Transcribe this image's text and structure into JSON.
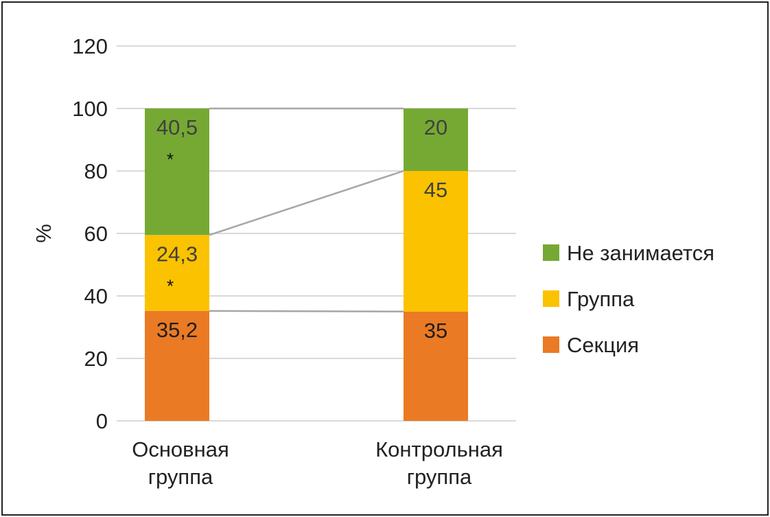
{
  "chart_data": {
    "type": "bar",
    "stacked": true,
    "title": "",
    "xlabel": "",
    "ylabel": "%",
    "ylim": [
      0,
      120
    ],
    "yticks": [
      "0",
      "20",
      "40",
      "60",
      "80",
      "100",
      "120"
    ],
    "categories": [
      [
        "Основная",
        "группа"
      ],
      [
        "Контрольная",
        "группа"
      ]
    ],
    "series": [
      {
        "name": "Секция",
        "color": "#EB7A24",
        "values": [
          35.2,
          35
        ],
        "labels": [
          "35,2",
          "35"
        ],
        "marks": [
          "",
          ""
        ]
      },
      {
        "name": "Группа",
        "color": "#FBC200",
        "values": [
          24.3,
          45
        ],
        "labels": [
          "24,3",
          "45"
        ],
        "marks": [
          "*",
          ""
        ]
      },
      {
        "name": "Не занимается",
        "color": "#76A933",
        "values": [
          40.5,
          20
        ],
        "labels": [
          "40,5",
          "20"
        ],
        "marks": [
          "*",
          ""
        ]
      }
    ],
    "legend": {
      "placement": "right",
      "order": [
        "Не занимается",
        "Группа",
        "Секция"
      ]
    },
    "grid": true,
    "series_lines": true
  }
}
